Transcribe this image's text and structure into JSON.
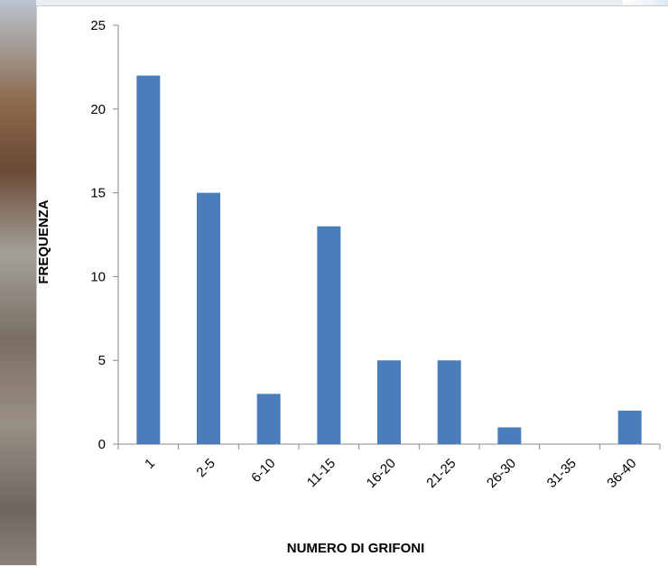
{
  "chart_data": {
    "type": "bar",
    "categories": [
      "1",
      "2-5",
      "6-10",
      "11-15",
      "16-20",
      "21-25",
      "26-30",
      "31-35",
      "36-40"
    ],
    "values": [
      22,
      15,
      3,
      13,
      5,
      5,
      1,
      0,
      2
    ],
    "xlabel": "NUMERO DI GRIFONI",
    "ylabel": "FREQUENZA",
    "ylim": [
      0,
      25
    ],
    "yticks": [
      0,
      5,
      10,
      15,
      20,
      25
    ],
    "grid": false,
    "legend": "none",
    "bar_color": "#4a7ebb"
  }
}
